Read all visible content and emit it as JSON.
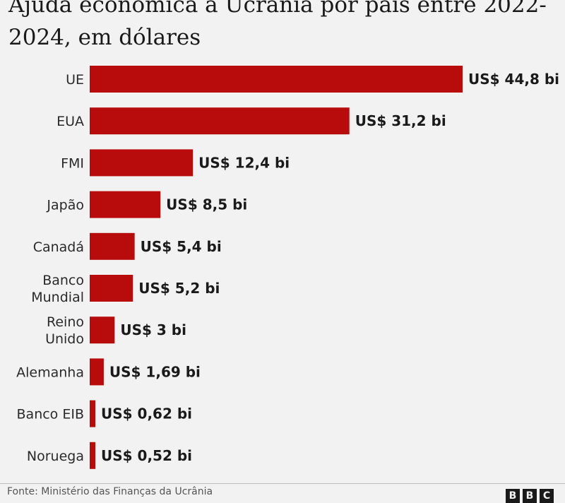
{
  "chart_data": {
    "type": "bar",
    "orientation": "horizontal",
    "title": "Ajuda econômica à Ucrânia por país entre 2022-2024, em dólares",
    "categories": [
      [
        "UE"
      ],
      [
        "EUA"
      ],
      [
        "FMI"
      ],
      [
        "Japão"
      ],
      [
        "Canadá"
      ],
      [
        "Banco",
        "Mundial"
      ],
      [
        "Reino",
        "Unido"
      ],
      [
        "Alemanha"
      ],
      [
        "Banco EIB"
      ],
      [
        "Noruega"
      ]
    ],
    "values": [
      44.8,
      31.2,
      12.4,
      8.5,
      5.4,
      5.2,
      3,
      1.69,
      0.62,
      0.52
    ],
    "value_labels": [
      "US$ 44,8 bi",
      "US$ 31,2 bi",
      "US$ 12,4 bi",
      "US$ 8,5 bi",
      "US$ 5,4 bi",
      "US$ 5,2 bi",
      "US$ 3 bi",
      "US$ 1,69 bi",
      "US$ 0,62 bi",
      "US$ 0,52 bi"
    ],
    "xlim": [
      0,
      44.8
    ],
    "grid": false,
    "bar_color": "#b80c0c"
  },
  "footer": {
    "source": "Fonte: Ministério das Finanças da Ucrânia",
    "logo": [
      "B",
      "B",
      "C"
    ]
  }
}
